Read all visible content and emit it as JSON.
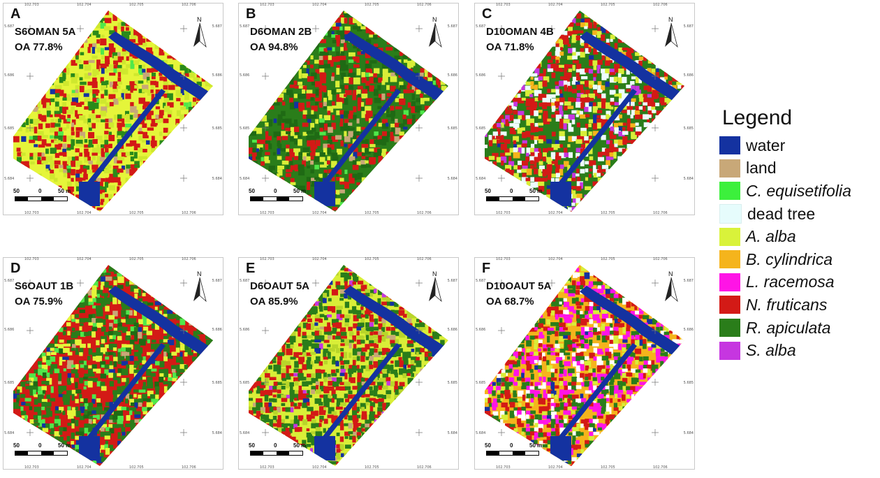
{
  "panels": [
    {
      "letter": "A",
      "name": "S6OMAN 5A",
      "oa": "OA 77.8%",
      "palette": [
        "#e5f53a",
        "#cfe82e",
        "#d31a16",
        "#2a8a1a",
        "#4fe84a",
        "#1432a0",
        "#c8a878"
      ],
      "weights": [
        0.46,
        0.16,
        0.22,
        0.1,
        0.02,
        0.02,
        0.02
      ]
    },
    {
      "letter": "B",
      "name": "D6OMAN 2B",
      "oa": "OA 94.8%",
      "palette": [
        "#2a7d1a",
        "#1f6a14",
        "#d31a16",
        "#d9ee38",
        "#4fe84a",
        "#1432a0",
        "#c8a878"
      ],
      "weights": [
        0.5,
        0.16,
        0.18,
        0.1,
        0.02,
        0.02,
        0.02
      ]
    },
    {
      "letter": "C",
      "name": "D10OMAN 4B",
      "oa": "OA 71.8%",
      "palette": [
        "#2a7d1a",
        "#d31a16",
        "#eefcff",
        "#d9ee38",
        "#c636e0",
        "#1432a0",
        "#f5b41c"
      ],
      "weights": [
        0.42,
        0.24,
        0.14,
        0.1,
        0.04,
        0.02,
        0.04
      ]
    },
    {
      "letter": "D",
      "name": "S6OAUT 1B",
      "oa": "OA 75.9%",
      "palette": [
        "#d31a16",
        "#2a7d1a",
        "#e5f53a",
        "#4fe84a",
        "#1432a0",
        "#c8a878",
        "#1f6a14"
      ],
      "weights": [
        0.42,
        0.28,
        0.12,
        0.08,
        0.03,
        0.02,
        0.05
      ]
    },
    {
      "letter": "E",
      "name": "D6OAUT 5A",
      "oa": "OA 85.9%",
      "palette": [
        "#d9ee38",
        "#2a7d1a",
        "#d31a16",
        "#b8d62a",
        "#1432a0",
        "#c636e0",
        "#c8a878"
      ],
      "weights": [
        0.38,
        0.26,
        0.22,
        0.08,
        0.02,
        0.02,
        0.02
      ]
    },
    {
      "letter": "F",
      "name": "D10OAUT 5A",
      "oa": "OA 68.7%",
      "palette": [
        "#f5b41c",
        "#2a7d1a",
        "#ff14e6",
        "#d31a16",
        "#ffffff",
        "#d9ee38",
        "#1432a0"
      ],
      "weights": [
        0.3,
        0.2,
        0.16,
        0.14,
        0.1,
        0.08,
        0.02
      ]
    }
  ],
  "ticks": {
    "top": [
      "102.703",
      "102.704",
      "102.705",
      "102.706"
    ],
    "side": [
      "5.687",
      "5.686",
      "5.685",
      "5.684"
    ]
  },
  "north_label": "N",
  "scalebar": {
    "left": "50",
    "mid": "0",
    "right": "50 m"
  },
  "legend": {
    "title": "Legend",
    "items": [
      {
        "label": "water",
        "color": "#1432a0",
        "italic": false
      },
      {
        "label": "land",
        "color": "#c8a878",
        "italic": false
      },
      {
        "label": "C. equisetifolia",
        "color": "#3cf03c",
        "italic": true
      },
      {
        "label": "dead tree",
        "color": "#e6fcfc",
        "italic": false
      },
      {
        "label": "A. alba",
        "color": "#d9f23a",
        "italic": true
      },
      {
        "label": "B. cylindrica",
        "color": "#f5b41c",
        "italic": true
      },
      {
        "label": "L. racemosa",
        "color": "#ff14e6",
        "italic": true
      },
      {
        "label": "N. fruticans",
        "color": "#d31a16",
        "italic": true
      },
      {
        "label": "R. apiculata",
        "color": "#2a7d1a",
        "italic": true
      },
      {
        "label": "S. alba",
        "color": "#c636e0",
        "italic": true
      }
    ]
  }
}
